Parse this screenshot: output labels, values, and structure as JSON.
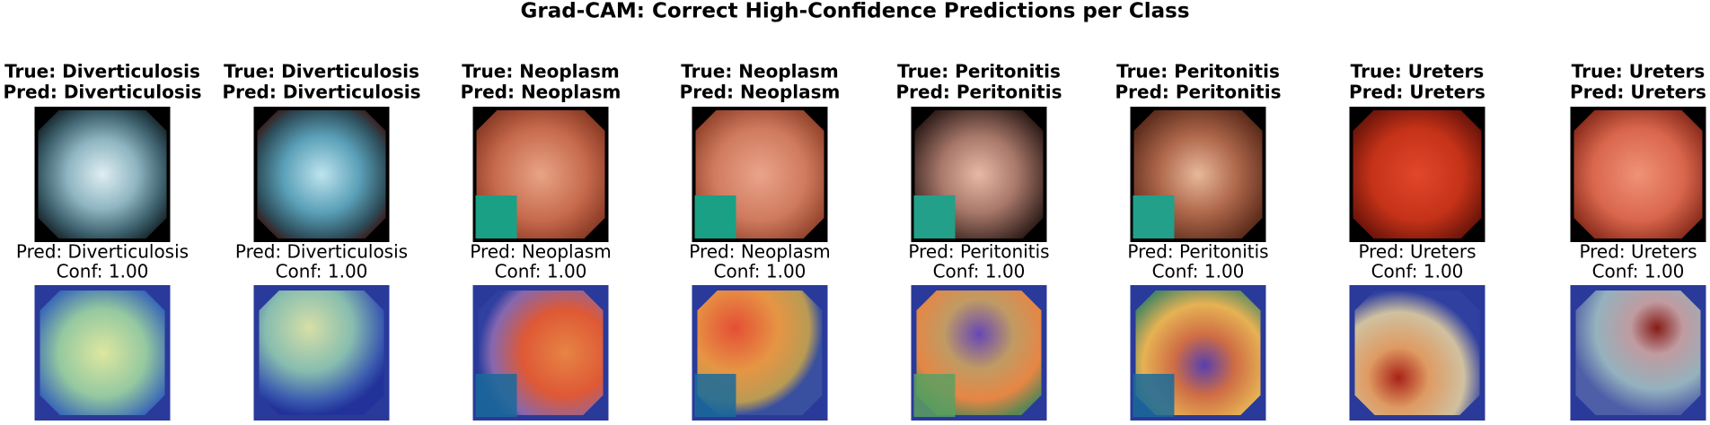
{
  "title": "Grad-CAM: Correct High-Confidence Predictions per Class",
  "panels": [
    {
      "heading": [
        "True: Diverticulosis",
        "Pred: Diverticulosis"
      ],
      "caption": [
        "Pred: Diverticulosis",
        "Conf: 1.00"
      ]
    },
    {
      "heading": [
        "True: Diverticulosis",
        "Pred: Diverticulosis"
      ],
      "caption": [
        "Pred: Diverticulosis",
        "Conf: 1.00"
      ]
    },
    {
      "heading": [
        "True: Neoplasm",
        "Pred: Neoplasm"
      ],
      "caption": [
        "Pred: Neoplasm",
        "Conf: 1.00"
      ]
    },
    {
      "heading": [
        "True: Neoplasm",
        "Pred: Neoplasm"
      ],
      "caption": [
        "Pred: Neoplasm",
        "Conf: 1.00"
      ]
    },
    {
      "heading": [
        "True: Peritonitis",
        "Pred: Peritonitis"
      ],
      "caption": [
        "Pred: Peritonitis",
        "Conf: 1.00"
      ]
    },
    {
      "heading": [
        "True: Peritonitis",
        "Pred: Peritonitis"
      ],
      "caption": [
        "Pred: Peritonitis",
        "Conf: 1.00"
      ]
    },
    {
      "heading": [
        "True: Ureters",
        "Pred: Ureters"
      ],
      "caption": [
        "Pred: Ureters",
        "Conf: 1.00"
      ]
    },
    {
      "heading": [
        "True: Ureters",
        "Pred: Ureters"
      ],
      "caption": [
        "Pred: Ureters",
        "Conf: 1.00"
      ]
    }
  ]
}
